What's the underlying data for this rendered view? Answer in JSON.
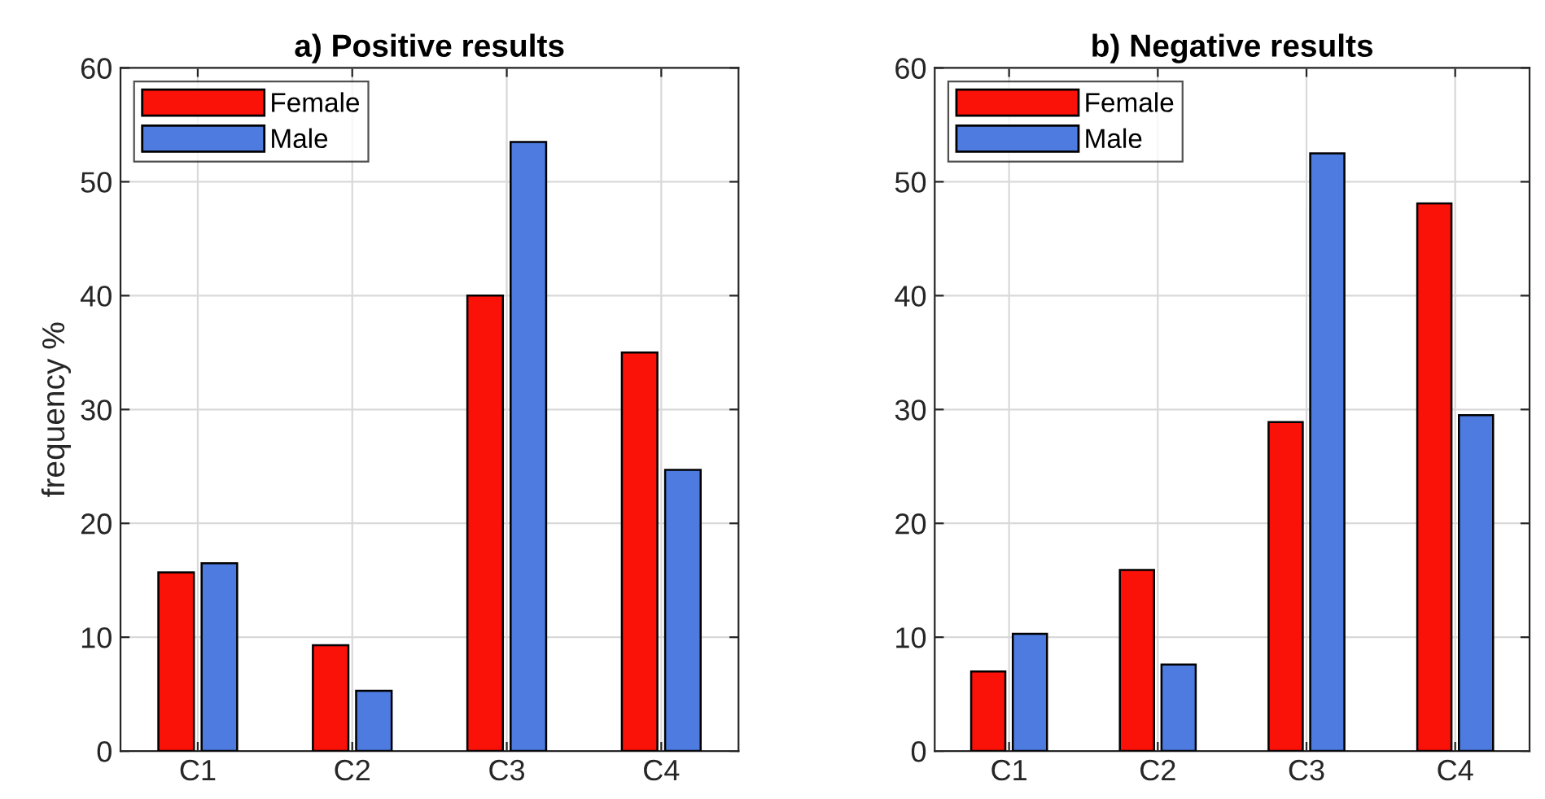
{
  "chart_data": [
    {
      "type": "bar",
      "title": "a) Positive results",
      "ylabel": "frequency %",
      "categories": [
        "C1",
        "C2",
        "C3",
        "C4"
      ],
      "series": [
        {
          "name": "Female",
          "color": "#fa1108",
          "values": [
            15.7,
            9.3,
            40.0,
            35.0
          ]
        },
        {
          "name": "Male",
          "color": "#4d7be0",
          "values": [
            16.5,
            5.3,
            53.5,
            24.7
          ]
        }
      ],
      "ylim": [
        0,
        60
      ],
      "yticks": [
        0,
        10,
        20,
        30,
        40,
        50,
        60
      ],
      "grid": true,
      "legend": "top left"
    },
    {
      "type": "bar",
      "title": "b) Negative results",
      "categories": [
        "C1",
        "C2",
        "C3",
        "C4"
      ],
      "series": [
        {
          "name": "Female",
          "color": "#fa1108",
          "values": [
            7.0,
            15.9,
            28.9,
            48.1
          ]
        },
        {
          "name": "Male",
          "color": "#4d7be0",
          "values": [
            10.3,
            7.6,
            52.5,
            29.5
          ]
        }
      ],
      "ylim": [
        0,
        60
      ],
      "yticks": [
        0,
        10,
        20,
        30,
        40,
        50,
        60
      ],
      "grid": true,
      "legend": "top left"
    }
  ]
}
